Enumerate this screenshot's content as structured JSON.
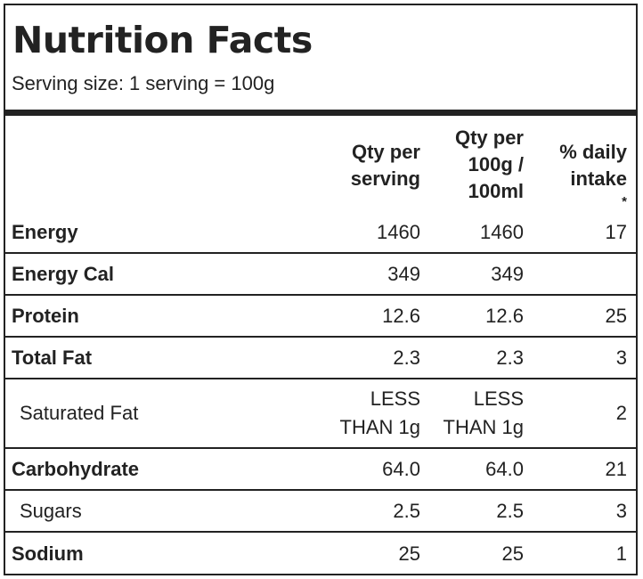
{
  "title": "Nutrition Facts",
  "serving_size": "Serving size: 1 serving = 100g",
  "headers": {
    "per_serving": [
      "Qty per",
      "serving"
    ],
    "per_100": [
      "Qty per",
      "100g /",
      "100ml"
    ],
    "daily": [
      "% daily",
      "intake"
    ],
    "daily_mark": "*"
  },
  "rows": [
    {
      "name": "Energy",
      "per_serving": [
        "1460"
      ],
      "per_100": [
        "1460"
      ],
      "daily": "17"
    },
    {
      "name": "Energy Cal",
      "per_serving": [
        "349"
      ],
      "per_100": [
        "349"
      ],
      "daily": ""
    },
    {
      "name": "Protein",
      "per_serving": [
        "12.6"
      ],
      "per_100": [
        "12.6"
      ],
      "daily": "25"
    },
    {
      "name": "Total Fat",
      "per_serving": [
        "2.3"
      ],
      "per_100": [
        "2.3"
      ],
      "daily": "3"
    },
    {
      "name": "Saturated Fat",
      "per_serving": [
        "LESS",
        "THAN 1g"
      ],
      "per_100": [
        "LESS",
        "THAN 1g"
      ],
      "daily": "2"
    },
    {
      "name": "Carbohydrate",
      "per_serving": [
        "64.0"
      ],
      "per_100": [
        "64.0"
      ],
      "daily": "21"
    },
    {
      "name": "Sugars",
      "per_serving": [
        "2.5"
      ],
      "per_100": [
        "2.5"
      ],
      "daily": "3"
    },
    {
      "name": "Sodium",
      "per_serving": [
        "25"
      ],
      "per_100": [
        "25"
      ],
      "daily": "1"
    }
  ]
}
